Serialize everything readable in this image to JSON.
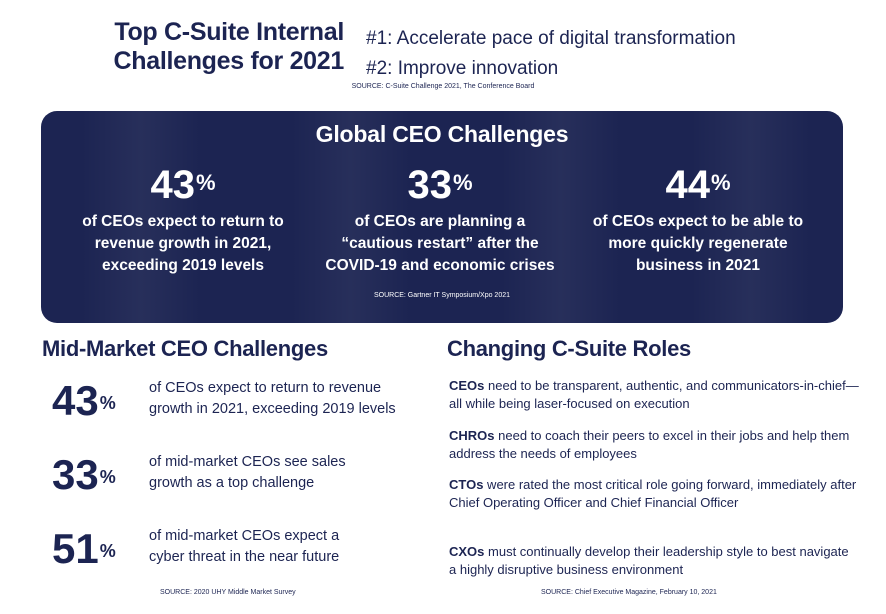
{
  "header": {
    "title_line1": "Top C-Suite Internal",
    "title_line2": "Challenges for 2021",
    "items": [
      "#1: Accelerate pace of digital transformation",
      "#2: Improve innovation"
    ],
    "source": "SOURCE: C-Suite Challenge 2021, The Conference Board"
  },
  "global": {
    "title": "Global CEO Challenges",
    "stats": [
      {
        "value": "43",
        "unit": "%",
        "line1": "of CEOs expect to return to",
        "line2": "revenue growth in 2021,",
        "line3": "exceeding 2019 levels"
      },
      {
        "value": "33",
        "unit": "%",
        "line1": "of CEOs are planning a",
        "line2": "“cautious restart” after the",
        "line3": "COVID-19 and economic crises"
      },
      {
        "value": "44",
        "unit": "%",
        "line1": "of CEOs expect to be able to",
        "line2": "more quickly regenerate",
        "line3": "business in 2021"
      }
    ],
    "source": "SOURCE: Gartner IT Symposium/Xpo 2021"
  },
  "midmarket": {
    "title": "Mid-Market CEO Challenges",
    "stats": [
      {
        "value": "43",
        "unit": "%",
        "line1": "of CEOs expect to return to revenue",
        "line2": "growth in 2021, exceeding 2019 levels"
      },
      {
        "value": "33",
        "unit": "%",
        "line1": "of mid-market CEOs see sales",
        "line2": "growth as a top challenge"
      },
      {
        "value": "51",
        "unit": "%",
        "line1": "of mid-market CEOs expect a",
        "line2": "cyber threat in the near future"
      }
    ],
    "source": "SOURCE: 2020 UHY Middle Market Survey"
  },
  "roles": {
    "title": "Changing C-Suite Roles",
    "items": [
      {
        "role": "CEOs",
        "text": " need to be transparent, authentic, and communicators-in-chief—all while being laser-focused on execution"
      },
      {
        "role": "CHROs",
        "text": " need to coach their peers to excel in their jobs and help them address the needs of employees"
      },
      {
        "role": "CTOs",
        "text": " were rated the most critical role going forward, immediately after Chief Operating Officer and Chief Financial Officer"
      },
      {
        "role": "CXOs",
        "text": " must continually develop their leadership style to best navigate a highly disruptive business environment"
      }
    ],
    "source": "SOURCE: Chief Executive Magazine, February 10, 2021"
  },
  "colors": {
    "navy": "#1c2452",
    "white": "#ffffff"
  }
}
